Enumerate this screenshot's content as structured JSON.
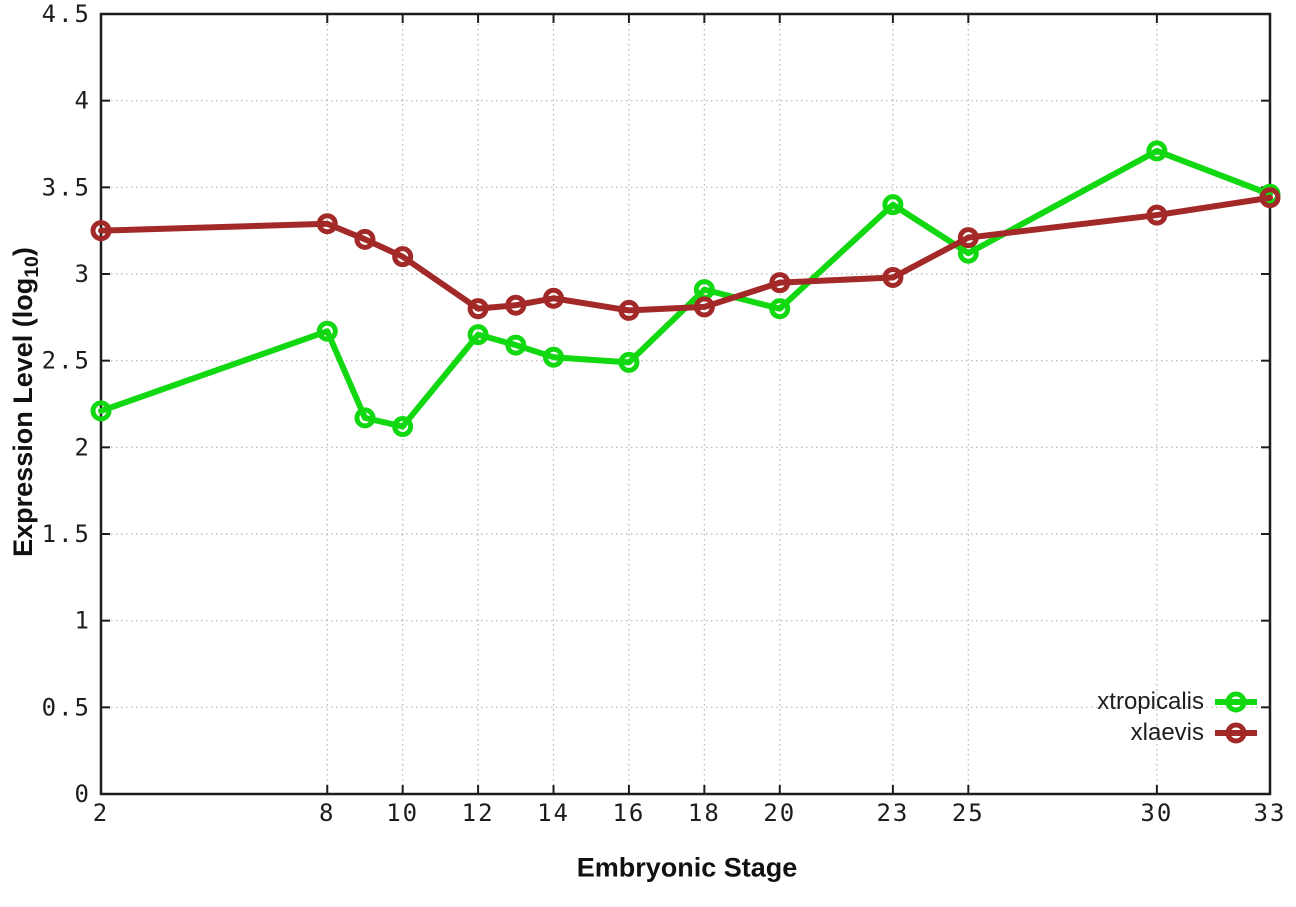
{
  "chart": {
    "ylabel_prefix": "Expression Level (log",
    "ylabel_sub": "10",
    "ylabel_suffix": ")",
    "xlabel": "Embryonic Stage"
  },
  "colors": {
    "background": "#ffffff",
    "axis": "#1d1d1d",
    "grid": "#b5b5b5",
    "text": "#1d1d1d",
    "xtropicalis": "#12D812",
    "xlaevis": "#A32929"
  },
  "chart_data": {
    "type": "line",
    "title": "",
    "xlabel": "Embryonic Stage",
    "ylabel": "Expression Level (log10)",
    "x": [
      2,
      8,
      9,
      10,
      12,
      13,
      14,
      16,
      18,
      20,
      23,
      25,
      30,
      33
    ],
    "series": [
      {
        "name": "xtropicalis",
        "color": "#12D812",
        "values": [
          2.21,
          2.67,
          2.17,
          2.12,
          2.65,
          2.59,
          2.52,
          2.49,
          2.91,
          2.8,
          3.4,
          3.12,
          3.71,
          3.46
        ]
      },
      {
        "name": "xlaevis",
        "color": "#A32929",
        "values": [
          3.25,
          3.29,
          3.2,
          3.1,
          2.8,
          2.82,
          2.86,
          2.79,
          2.81,
          2.95,
          2.98,
          3.21,
          3.34,
          3.44
        ]
      }
    ],
    "xlim": [
      2,
      33
    ],
    "ylim": [
      0,
      4.5
    ],
    "x_tick_values": [
      2,
      8,
      10,
      12,
      14,
      16,
      18,
      20,
      23,
      25,
      30,
      33
    ],
    "x_tick_labels": [
      "2",
      "8",
      "10",
      "12",
      "14",
      "16",
      "18",
      "20",
      "23",
      "25",
      "30",
      "33"
    ],
    "y_tick_values": [
      0,
      0.5,
      1,
      1.5,
      2,
      2.5,
      3,
      3.5,
      4,
      4.5
    ],
    "y_tick_labels": [
      "0",
      "0.5",
      "1",
      "1.5",
      "2",
      "2.5",
      "3",
      "3.5",
      "4",
      "4.5"
    ],
    "grid": true,
    "legend_position": "bottom-right",
    "marker": "open-circle"
  }
}
